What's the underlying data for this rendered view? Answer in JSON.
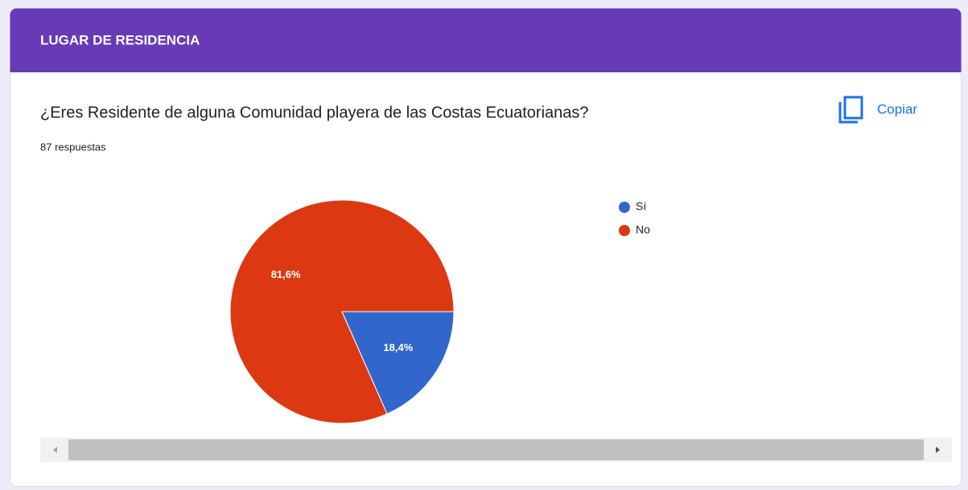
{
  "header": {
    "title": "LUGAR DE RESIDENCIA"
  },
  "question": {
    "text": "¿Eres Residente de alguna Comunidad playera de las Costas Ecuatorianas?",
    "responses": "87 respuestas",
    "copy_button": "Copiar"
  },
  "chart_data": {
    "type": "pie",
    "categories": [
      "Sí",
      "No"
    ],
    "values": [
      18.4,
      81.6
    ],
    "value_labels": [
      "18,4%",
      "81,6%"
    ],
    "colors": [
      "#3366cc",
      "#dc3912"
    ]
  }
}
